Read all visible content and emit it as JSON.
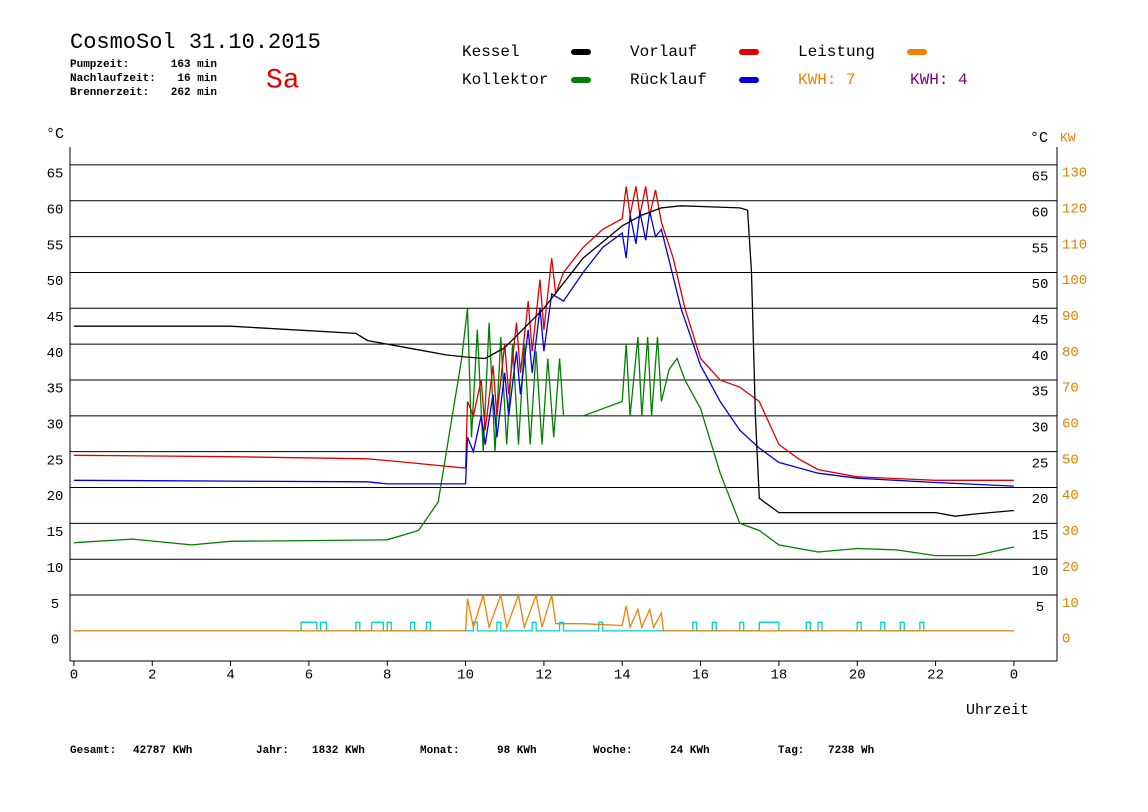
{
  "chart_data": {
    "type": "line",
    "title": "CosmoSol 31.10.2015",
    "day": "Sa",
    "info": [
      {
        "label": "Pumpzeit:",
        "value": "163 min"
      },
      {
        "label": "Nachlaufzeit:",
        "value": "16 min"
      },
      {
        "label": "Brennerzeit:",
        "value": "262 min"
      }
    ],
    "y_label": "°C",
    "y2_label_c": "°C",
    "y2_label": "KW",
    "x_label": "Uhrzeit",
    "xlim": [
      -0.1,
      25.1
    ],
    "xticks": [
      0,
      2,
      4,
      6,
      8,
      10,
      12,
      14,
      16,
      18,
      20,
      22,
      {
        "value": 24,
        "label": "0"
      }
    ],
    "ylim": [
      -4.2,
      67.5
    ],
    "yticks": [
      0,
      5,
      10,
      15,
      20,
      25,
      30,
      35,
      40,
      45,
      50,
      55,
      60,
      65
    ],
    "y_right_ticks": [
      5,
      10,
      15,
      20,
      25,
      30,
      35,
      40,
      45,
      50,
      55,
      60,
      65
    ],
    "y2lim": [
      -8.4,
      135
    ],
    "y2ticks": [
      0,
      10,
      20,
      30,
      40,
      50,
      60,
      70,
      80,
      90,
      100,
      110,
      120,
      130
    ],
    "grid": true,
    "series": [
      {
        "name": "Kessel",
        "color": "#000000",
        "x": [
          0,
          4,
          7.2,
          7.5,
          8.5,
          9.5,
          10,
          10.5,
          11,
          12,
          13,
          14,
          14.5,
          15,
          15.5,
          16,
          17,
          17.2,
          17.3,
          17.4,
          17.5,
          18,
          20,
          22,
          22.5,
          23,
          24
        ],
        "values": [
          42.5,
          42.5,
          41.5,
          40.5,
          39.5,
          38.5,
          38.2,
          38,
          39.5,
          45,
          52,
          56.5,
          58,
          59,
          59.3,
          59.2,
          59,
          58.7,
          50,
          30,
          18.5,
          16.5,
          16.5,
          16.5,
          16,
          16.3,
          16.8
        ]
      },
      {
        "name": "Vorlauf",
        "color": "#e00000",
        "x": [
          0,
          4,
          7.5,
          8.5,
          10,
          10.05,
          10.2,
          10.4,
          10.5,
          10.7,
          10.8,
          11,
          11.1,
          11.3,
          11.4,
          11.6,
          11.7,
          11.9,
          12,
          12.2,
          12.3,
          12.5,
          13,
          13.5,
          14,
          14.1,
          14.2,
          14.35,
          14.45,
          14.6,
          14.7,
          14.85,
          15,
          15.3,
          15.6,
          16,
          16.5,
          17,
          17.5,
          18,
          18.5,
          19,
          20,
          22,
          24
        ],
        "values": [
          24.5,
          24.3,
          24,
          23.5,
          22.7,
          32,
          30,
          35,
          28,
          37,
          30,
          40,
          33,
          43,
          36,
          46,
          39,
          49,
          42,
          52,
          47,
          50,
          53.5,
          56,
          57.5,
          62,
          58,
          62,
          58,
          62,
          58,
          61.5,
          57,
          52,
          45,
          38,
          35,
          34,
          32,
          26,
          24,
          22.5,
          21.5,
          21,
          21
        ]
      },
      {
        "name": "Leistung",
        "color": "#f08000",
        "axis": "y2",
        "x": [
          0,
          10,
          10.05,
          10.2,
          10.45,
          10.6,
          10.9,
          11.05,
          11.35,
          11.5,
          11.8,
          11.95,
          12.2,
          12.3,
          13,
          14,
          14.1,
          14.2,
          14.4,
          14.5,
          14.7,
          14.8,
          15,
          15.05,
          24
        ],
        "values": [
          0,
          0,
          9,
          1,
          10,
          1,
          10,
          1,
          10,
          1,
          10,
          1,
          10,
          2,
          2,
          1.5,
          7,
          1,
          6,
          1,
          6,
          1,
          5,
          0,
          0
        ]
      },
      {
        "name": "Kollektor",
        "color": "#008000",
        "x": [
          0,
          1.5,
          3,
          4,
          6,
          8,
          8.8,
          9.3,
          9.6,
          9.9,
          10.05,
          10.15,
          10.3,
          10.45,
          10.6,
          10.75,
          10.9,
          11.05,
          11.2,
          11.35,
          11.5,
          11.65,
          11.8,
          11.95,
          12.1,
          12.25,
          12.4,
          12.5,
          13,
          13.5,
          14,
          14.1,
          14.2,
          14.4,
          14.5,
          14.65,
          14.75,
          14.9,
          15,
          15.2,
          15.4,
          15.6,
          15.8,
          16,
          16.5,
          17,
          17.5,
          18,
          19,
          20,
          21,
          22,
          23,
          24
        ],
        "values": [
          12.3,
          12.8,
          12,
          12.5,
          12.6,
          12.7,
          14,
          18,
          28,
          38,
          45,
          27,
          42,
          25,
          43,
          25,
          41,
          26,
          40,
          26,
          40,
          26,
          39,
          26,
          38,
          27,
          38,
          30,
          30,
          31,
          32,
          40,
          30,
          41,
          30,
          41,
          30,
          41,
          32,
          36.5,
          38,
          35,
          33,
          31,
          22,
          15,
          14,
          12,
          11,
          11.5,
          11.3,
          10.5,
          10.5,
          11.7
        ]
      },
      {
        "name": "Rücklauf",
        "color": "#0000e0",
        "x": [
          0,
          7.5,
          8,
          10,
          10.05,
          10.2,
          10.4,
          10.5,
          10.7,
          10.8,
          11,
          11.1,
          11.3,
          11.4,
          11.6,
          11.7,
          11.9,
          12,
          12.2,
          12.5,
          13,
          13.5,
          14,
          14.1,
          14.2,
          14.35,
          14.45,
          14.6,
          14.7,
          14.85,
          15,
          15.5,
          16,
          16.5,
          17,
          17.5,
          18,
          19,
          20,
          22,
          24
        ],
        "values": [
          21,
          20.8,
          20.5,
          20.5,
          27,
          25,
          30,
          26,
          33,
          27,
          36,
          30,
          39,
          33,
          42,
          36,
          45,
          39,
          47,
          46,
          50,
          53.5,
          55.5,
          52,
          58,
          54,
          58.5,
          54.5,
          58.5,
          55,
          56,
          45,
          37,
          32,
          28,
          25.5,
          23.5,
          22,
          21.3,
          20.7,
          20.2
        ]
      },
      {
        "color": "#00d0d0",
        "x": [
          0,
          5.8,
          5.8,
          6.2,
          6.2,
          6.3,
          6.3,
          6.45,
          6.45,
          7.2,
          7.2,
          7.3,
          7.3,
          7.6,
          7.6,
          7.9,
          7.9,
          8.0,
          8.0,
          8.1,
          8.1,
          8.6,
          8.6,
          8.7,
          8.7,
          9.0,
          9.0,
          9.1,
          9.1,
          10.2,
          10.2,
          10.3,
          10.3,
          10.8,
          10.8,
          10.9,
          10.9,
          11.7,
          11.7,
          11.8,
          11.8,
          12.4,
          12.4,
          12.5,
          12.5,
          13.4,
          13.4,
          13.5,
          13.5,
          15.8,
          15.8,
          15.9,
          15.9,
          16.3,
          16.3,
          16.4,
          16.4,
          17.0,
          17.0,
          17.1,
          17.1,
          17.5,
          17.5,
          18.0,
          18.0,
          18.7,
          18.7,
          18.8,
          18.8,
          19.0,
          19.0,
          19.1,
          19.1,
          20.0,
          20.0,
          20.1,
          20.1,
          20.6,
          20.6,
          20.7,
          20.7,
          21.1,
          21.1,
          21.2,
          21.2,
          21.6,
          21.6,
          21.7,
          21.7,
          24
        ],
        "values": [
          0,
          0,
          1.2,
          1.2,
          0,
          0,
          1.2,
          1.2,
          0,
          0,
          1.2,
          1.2,
          0,
          0,
          1.2,
          1.2,
          0,
          0,
          1.2,
          1.2,
          0,
          0,
          1.2,
          1.2,
          0,
          0,
          1.2,
          1.2,
          0,
          0,
          1.2,
          1.2,
          0,
          0,
          1.2,
          1.2,
          0,
          0,
          1.2,
          1.2,
          0,
          0,
          1.2,
          1.2,
          0,
          0,
          1.2,
          1.2,
          0,
          0,
          1.2,
          1.2,
          0,
          0,
          1.2,
          1.2,
          0,
          0,
          1.2,
          1.2,
          0,
          0,
          1.2,
          1.2,
          0,
          0,
          1.2,
          1.2,
          0,
          0,
          1.2,
          1.2,
          0,
          0,
          1.2,
          1.2,
          0,
          0,
          1.2,
          1.2,
          0,
          0,
          1.2,
          1.2,
          0,
          0,
          1.2,
          1.2,
          0,
          0
        ]
      }
    ],
    "kwh": [
      {
        "label": "KWH: 7",
        "color": "#f08000"
      },
      {
        "label": "KWH: 4",
        "color": "#800080"
      }
    ],
    "totals": [
      {
        "label": "Gesamt:",
        "value": "42787 KWh"
      },
      {
        "label": "Jahr:",
        "value": "1832 KWh"
      },
      {
        "label": "Monat:",
        "value": "98 KWh"
      },
      {
        "label": "Woche:",
        "value": "24 KWh"
      },
      {
        "label": "Tag:",
        "value": "7238 Wh"
      }
    ]
  }
}
